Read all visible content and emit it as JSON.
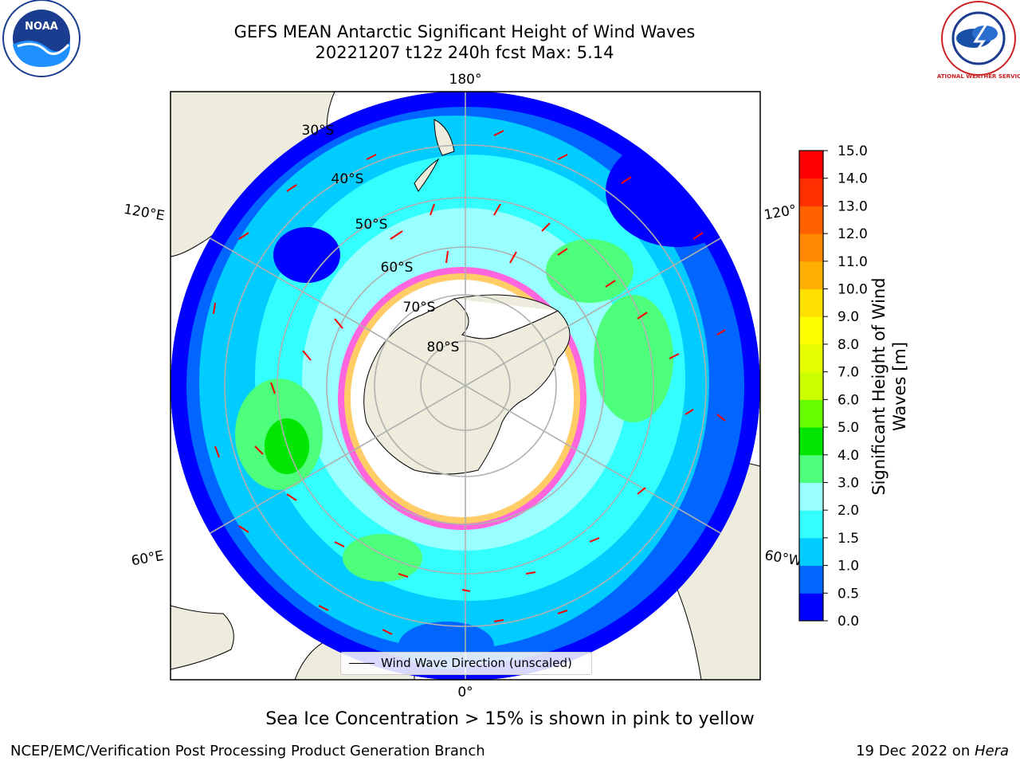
{
  "title_line1": "GEFS MEAN Antarctic Significant Height of Wind Waves",
  "title_line2": "20221207 t12z 240h fcst   Max: 5.14",
  "subtitle": "Sea Ice Concentration > 15% is shown in pink to yellow",
  "footer_left": "NCEP/EMC/Verification Post Processing Product Generation Branch",
  "footer_date": "19 Dec 2022 on ",
  "footer_host": "Hera",
  "legend_label": "Wind Wave Direction (unscaled)",
  "logos": {
    "left": "NOAA",
    "right": "NATIONAL WEATHER SERVICE"
  },
  "longitude_labels": [
    "180°",
    "120°E",
    "120°",
    "60°E",
    "60°W",
    "0°"
  ],
  "latitude_labels": [
    "30°S",
    "40°S",
    "50°S",
    "60°S",
    "70°S",
    "80°S"
  ],
  "colorbar": {
    "label_line1": "Significant Height of Wind",
    "label_line2": "Waves [m]",
    "ticks": [
      "0.0",
      "0.5",
      "1.0",
      "1.5",
      "2.0",
      "3.0",
      "4.0",
      "5.0",
      "6.0",
      "7.0",
      "8.0",
      "9.0",
      "10.0",
      "11.0",
      "12.0",
      "13.0",
      "14.0",
      "15.0"
    ],
    "colors": [
      "#0000ff",
      "#0066ff",
      "#00ccff",
      "#33ffff",
      "#99ffff",
      "#4dff7a",
      "#00e600",
      "#66ff00",
      "#ccff00",
      "#e6ff00",
      "#ffff00",
      "#ffe000",
      "#ffb000",
      "#ff8800",
      "#ff6000",
      "#ff3000",
      "#ff0000"
    ]
  },
  "colors": {
    "land": "#eeecdc",
    "ice": "#ffffff",
    "arrow": "#ff0000",
    "grid": "#b0b0b0"
  }
}
